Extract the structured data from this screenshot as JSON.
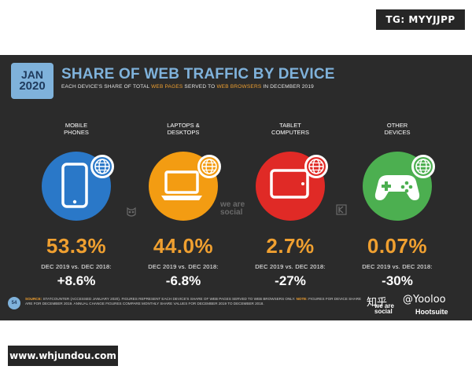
{
  "watermark_top": "TG: MYYJJPP",
  "watermark_bottom": "www.whjundou.com",
  "slide": {
    "date_month": "JAN",
    "date_year": "2020",
    "title": "SHARE OF WEB TRAFFIC BY DEVICE",
    "subtitle_1": "EACH DEVICE'S SHARE OF TOTAL ",
    "subtitle_hl1": "WEB PAGES",
    "subtitle_2": " SERVED TO ",
    "subtitle_hl2": "WEB BROWSERS",
    "subtitle_3": " IN DECEMBER 2019",
    "comparison_label": "DEC 2019 vs. DEC 2018:",
    "brand_center": "we are social",
    "page_number": "54",
    "footnote_source_label": "SOURCE:",
    "footnote_text": " STATCOUNTER (ACCESSED JANUARY 2020). FIGURES REPRESENT EACH DEVICE'S SHARE OF WEB PAGES SERVED TO WEB BROWSERS ONLY. ",
    "footnote_note_label": "NOTE:",
    "footnote_text2": " FIGURES FOR DEVICE SHARE ARE FOR DECEMBER 2019. ANNUAL CHANGE FIGURES COMPARE MONTHLY SHARE VALUES FOR DECEMBER 2019 TO DECEMBER 2018.",
    "footer_zhihu": "知乎",
    "footer_yooloo": "@Yooloo",
    "footer_was": "we are social",
    "footer_hootsuite": "Hootsuite"
  },
  "devices": [
    {
      "label": "MOBILE\nPHONES",
      "value": "53.3%",
      "change": "+8.6%",
      "color": "#2a78c8",
      "icon": "smartphone-icon"
    },
    {
      "label": "LAPTOPS &\nDESKTOPS",
      "value": "44.0%",
      "change": "-6.8%",
      "color": "#f39c12",
      "icon": "laptop-icon"
    },
    {
      "label": "TABLET\nCOMPUTERS",
      "value": "2.7%",
      "change": "-27%",
      "color": "#e02a26",
      "icon": "tablet-icon"
    },
    {
      "label": "OTHER\nDEVICES",
      "value": "0.07%",
      "change": "-30%",
      "color": "#4caf50",
      "icon": "gamepad-icon"
    }
  ],
  "value_color": "#f0a030"
}
